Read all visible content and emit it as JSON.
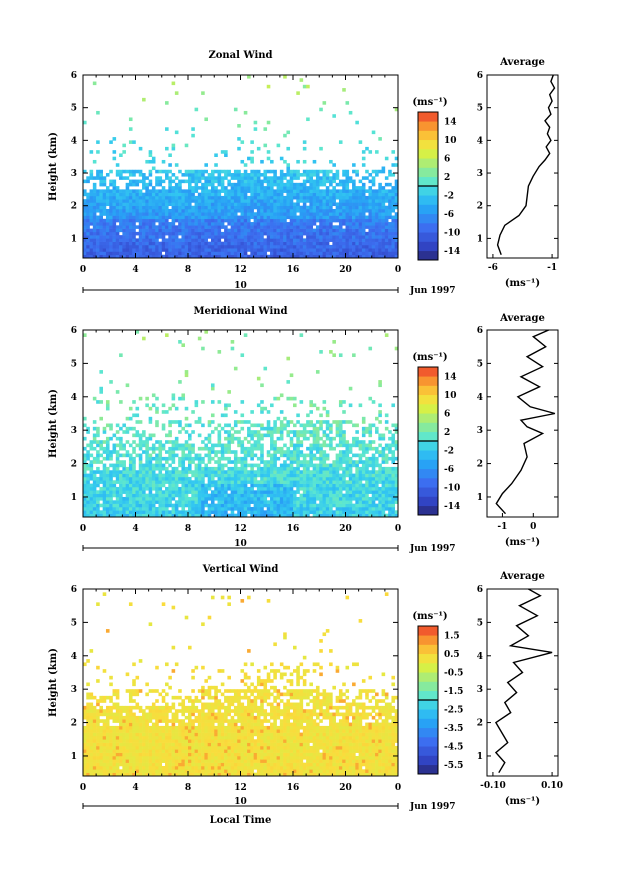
{
  "chart_data": [
    {
      "type": "heatmap",
      "title": "Zonal Wind",
      "ylabel": "Height (km)",
      "xticks": [
        "0",
        "4",
        "8",
        "12",
        "16",
        "20",
        "0"
      ],
      "yticks": [
        "1",
        "2",
        "3",
        "4",
        "5",
        "6"
      ],
      "date_label": "10",
      "month_label": "Jun 1997",
      "ylim": [
        0.4,
        6.0
      ],
      "xlim": [
        0,
        24
      ],
      "colorbar": {
        "unit": "(ms⁻¹)",
        "ticks": [
          "14",
          "10",
          "6",
          "2",
          "-2",
          "-6",
          "-10",
          "-14"
        ],
        "range": [
          -16,
          16
        ]
      },
      "profile": {
        "title": "Average",
        "xlabel": "(ms⁻¹)",
        "xticks": [
          "-6",
          "-1"
        ],
        "yticks": [
          "1",
          "2",
          "3",
          "4",
          "5",
          "6"
        ],
        "xlim": [
          -6.5,
          -0.5
        ],
        "points": [
          [
            -5.3,
            0.5
          ],
          [
            -5.6,
            0.8
          ],
          [
            -5.4,
            1.1
          ],
          [
            -5.0,
            1.4
          ],
          [
            -4.6,
            1.5
          ],
          [
            -3.8,
            1.7
          ],
          [
            -3.2,
            2.0
          ],
          [
            -3.1,
            2.3
          ],
          [
            -3.0,
            2.6
          ],
          [
            -2.6,
            2.9
          ],
          [
            -2.1,
            3.2
          ],
          [
            -1.6,
            3.4
          ],
          [
            -1.2,
            3.6
          ],
          [
            -1.5,
            3.8
          ],
          [
            -1.1,
            4.0
          ],
          [
            -1.4,
            4.2
          ],
          [
            -1.2,
            4.4
          ],
          [
            -1.6,
            4.6
          ],
          [
            -1.1,
            4.8
          ],
          [
            -1.3,
            5.0
          ],
          [
            -1.0,
            5.2
          ],
          [
            -1.2,
            5.4
          ],
          [
            -0.8,
            5.6
          ],
          [
            -1.1,
            5.8
          ],
          [
            -0.9,
            6.0
          ]
        ]
      }
    },
    {
      "type": "heatmap",
      "title": "Meridional Wind",
      "ylabel": "Height (km)",
      "xticks": [
        "0",
        "4",
        "8",
        "12",
        "16",
        "20",
        "0"
      ],
      "yticks": [
        "1",
        "2",
        "3",
        "4",
        "5",
        "6"
      ],
      "date_label": "10",
      "month_label": "Jun 1997",
      "ylim": [
        0.4,
        6.0
      ],
      "xlim": [
        0,
        24
      ],
      "colorbar": {
        "unit": "(ms⁻¹)",
        "ticks": [
          "14",
          "10",
          "6",
          "2",
          "-2",
          "-6",
          "-10",
          "-14"
        ],
        "range": [
          -16,
          16
        ]
      },
      "profile": {
        "title": "Average",
        "xlabel": "(ms⁻¹)",
        "xticks": [
          "-1",
          "0"
        ],
        "yticks": [
          "1",
          "2",
          "3",
          "4",
          "5",
          "6"
        ],
        "xlim": [
          -1.5,
          0.8
        ],
        "points": [
          [
            -0.9,
            0.5
          ],
          [
            -1.2,
            0.8
          ],
          [
            -1.0,
            1.1
          ],
          [
            -0.7,
            1.4
          ],
          [
            -0.4,
            1.8
          ],
          [
            -0.2,
            2.2
          ],
          [
            -0.3,
            2.6
          ],
          [
            0.3,
            2.9
          ],
          [
            -0.2,
            3.1
          ],
          [
            -0.4,
            3.3
          ],
          [
            0.7,
            3.5
          ],
          [
            -0.1,
            3.7
          ],
          [
            -0.5,
            4.0
          ],
          [
            0.2,
            4.3
          ],
          [
            -0.4,
            4.6
          ],
          [
            0.3,
            4.9
          ],
          [
            -0.2,
            5.2
          ],
          [
            0.4,
            5.5
          ],
          [
            0.0,
            5.8
          ],
          [
            0.5,
            6.0
          ]
        ]
      }
    },
    {
      "type": "heatmap",
      "title": "Vertical Wind",
      "ylabel": "Height (km)",
      "xlabel": "Local Time",
      "xticks": [
        "0",
        "4",
        "8",
        "12",
        "16",
        "20",
        "0"
      ],
      "yticks": [
        "1",
        "2",
        "3",
        "4",
        "5",
        "6"
      ],
      "date_label": "10",
      "month_label": "Jun 1997",
      "ylim": [
        0.4,
        6.0
      ],
      "xlim": [
        0,
        24
      ],
      "colorbar": {
        "unit": "(ms⁻¹)",
        "ticks": [
          "1.5",
          "0.5",
          "-0.5",
          "-1.5",
          "-2.5",
          "-3.5",
          "-4.5",
          "-5.5"
        ],
        "range": [
          -6,
          2
        ]
      },
      "profile": {
        "title": "Average",
        "xlabel": "(ms⁻¹)",
        "xticks": [
          "-0.10",
          "0.10"
        ],
        "yticks": [
          "1",
          "2",
          "3",
          "4",
          "5",
          "6"
        ],
        "xlim": [
          -0.12,
          0.12
        ],
        "points": [
          [
            -0.08,
            0.5
          ],
          [
            -0.06,
            0.8
          ],
          [
            -0.09,
            1.1
          ],
          [
            -0.05,
            1.4
          ],
          [
            -0.07,
            1.7
          ],
          [
            -0.09,
            2.0
          ],
          [
            -0.04,
            2.3
          ],
          [
            -0.06,
            2.6
          ],
          [
            -0.02,
            2.9
          ],
          [
            -0.05,
            3.2
          ],
          [
            0.0,
            3.5
          ],
          [
            -0.03,
            3.8
          ],
          [
            0.1,
            4.1
          ],
          [
            -0.04,
            4.3
          ],
          [
            0.02,
            4.6
          ],
          [
            -0.02,
            4.9
          ],
          [
            0.05,
            5.2
          ],
          [
            -0.01,
            5.5
          ],
          [
            0.06,
            5.8
          ],
          [
            0.02,
            6.0
          ]
        ]
      }
    }
  ]
}
